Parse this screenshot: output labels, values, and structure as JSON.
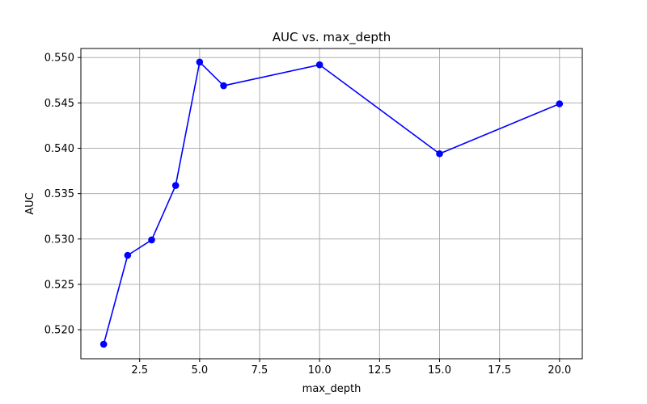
{
  "chart_data": {
    "type": "line",
    "title": "AUC vs. max_depth",
    "xlabel": "max_depth",
    "ylabel": "AUC",
    "xlim": [
      0.05,
      20.95
    ],
    "ylim": [
      0.5168,
      0.551
    ],
    "xticks": [
      2.5,
      5.0,
      7.5,
      10.0,
      12.5,
      15.0,
      17.5,
      20.0
    ],
    "xtick_labels": [
      "2.5",
      "5.0",
      "7.5",
      "10.0",
      "12.5",
      "15.0",
      "17.5",
      "20.0"
    ],
    "yticks": [
      0.52,
      0.525,
      0.53,
      0.535,
      0.54,
      0.545,
      0.55
    ],
    "ytick_labels": [
      "0.520",
      "0.525",
      "0.530",
      "0.535",
      "0.540",
      "0.545",
      "0.550"
    ],
    "grid": true,
    "series": [
      {
        "x": [
          1,
          2,
          3,
          4,
          5,
          6,
          10,
          15,
          20
        ],
        "y": [
          0.5184,
          0.5282,
          0.5299,
          0.5359,
          0.5495,
          0.5469,
          0.5492,
          0.5394,
          0.5449
        ],
        "color": "#0000ff",
        "marker": "circle"
      }
    ]
  }
}
